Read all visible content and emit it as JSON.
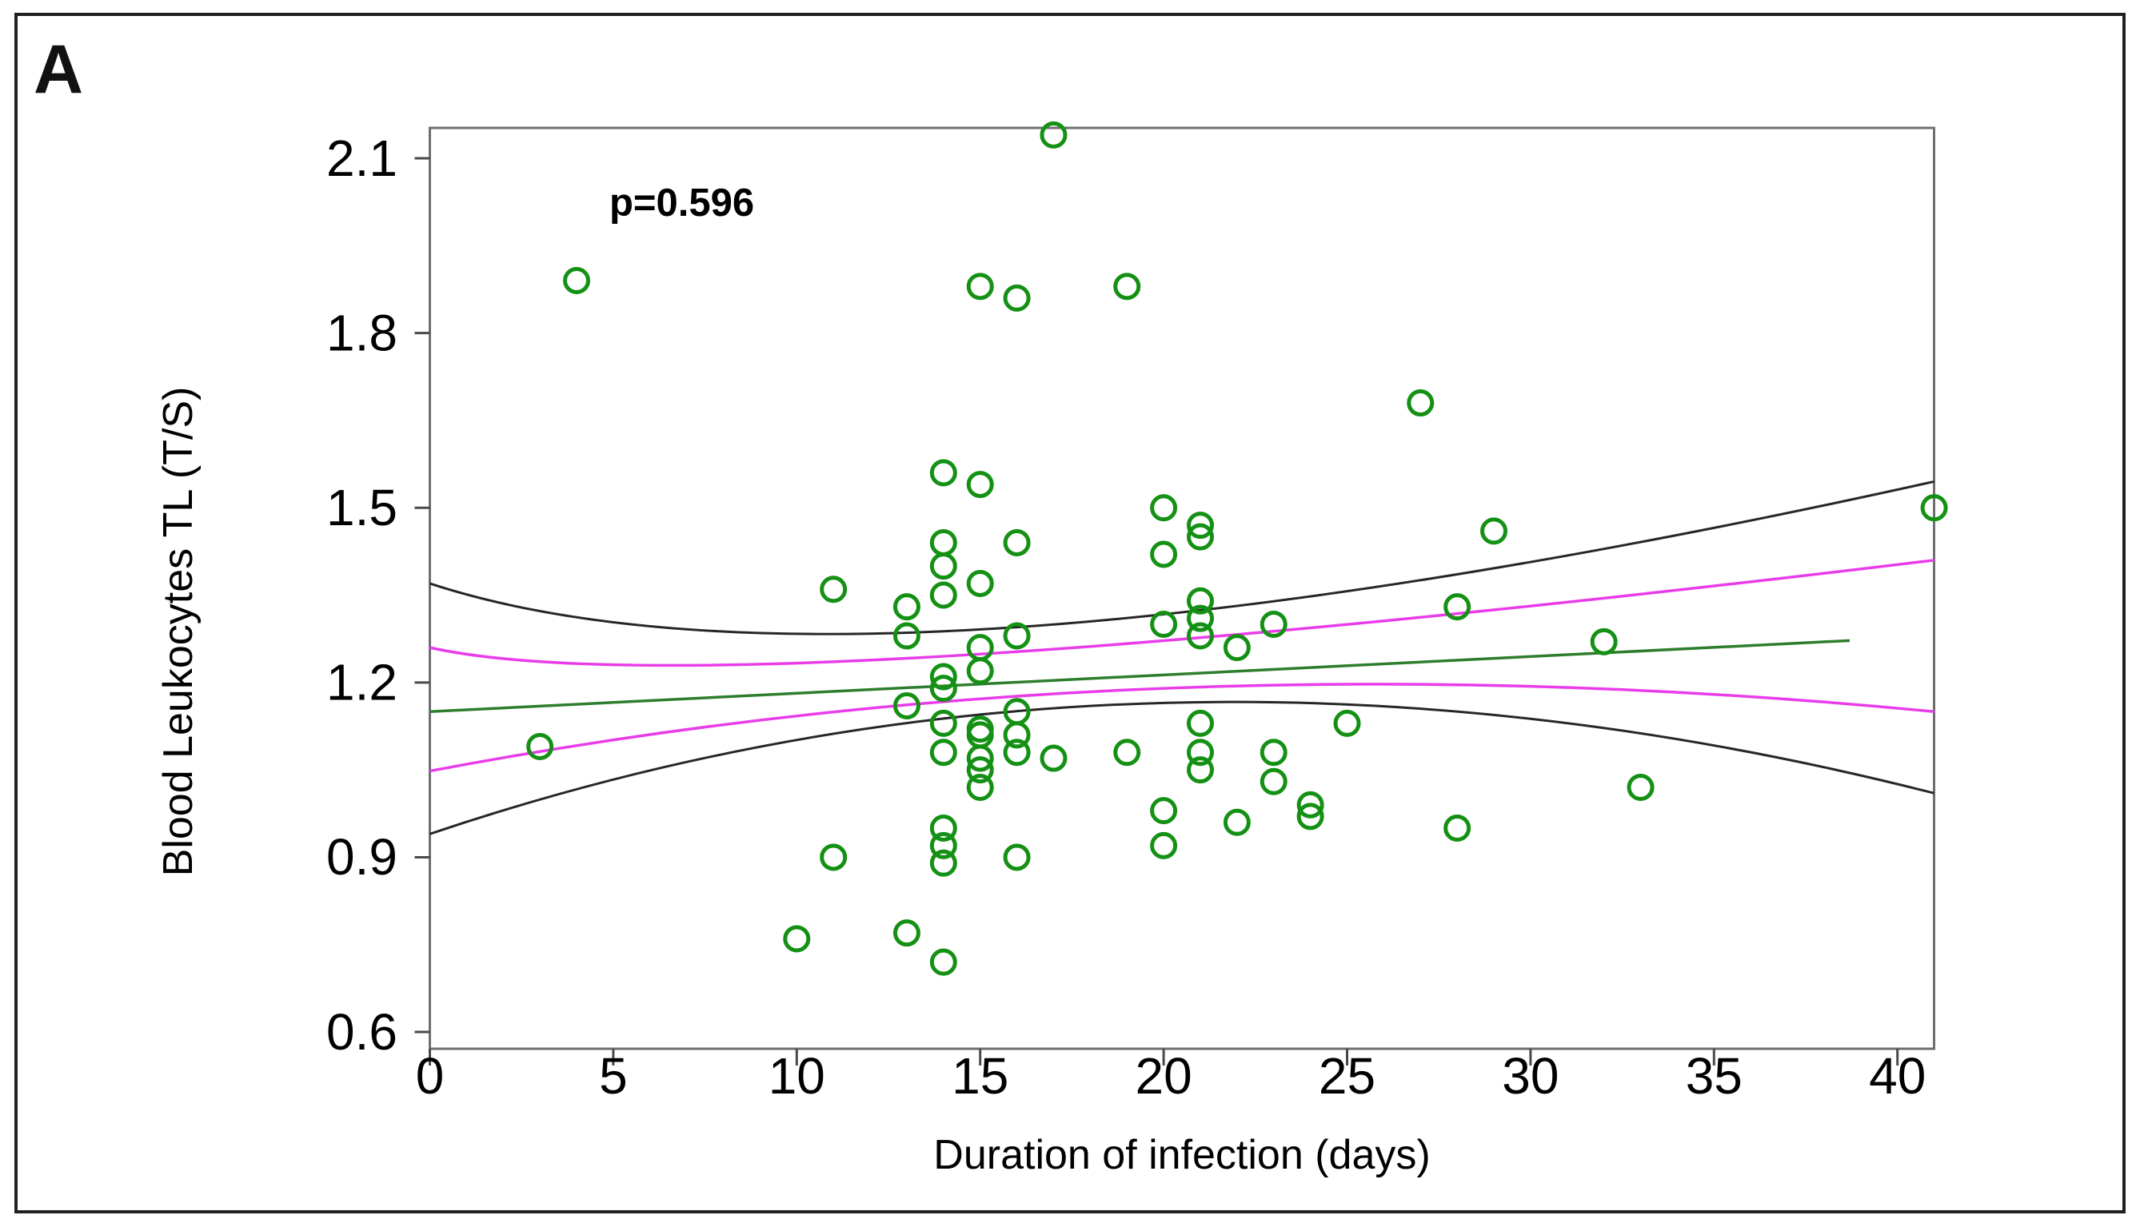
{
  "figure": {
    "panel_label": "A",
    "background": "#ffffff",
    "border_color": "#202020"
  },
  "annotation": {
    "p_value_label": "p=0.596"
  },
  "chart_data": {
    "type": "scatter",
    "title": "",
    "xlabel": "Duration of infection (days)",
    "ylabel": "Blood Leukocytes TL (T/S)",
    "xlim": [
      0,
      41
    ],
    "ylim": [
      0.57,
      2.15
    ],
    "grid": false,
    "legend": "none",
    "x_ticks": [
      0,
      5,
      10,
      15,
      20,
      25,
      30,
      35,
      40
    ],
    "x_tick_labels": [
      "0",
      "5",
      "10",
      "15",
      "20",
      "25",
      "30",
      "35",
      "40"
    ],
    "y_ticks": [
      0.6,
      0.9,
      1.2,
      1.5,
      1.8,
      2.1
    ],
    "y_tick_labels": [
      "0.6",
      "0.9",
      "1.2",
      "1.5",
      "1.8",
      "2.1"
    ],
    "points": [
      [
        3,
        1.09
      ],
      [
        4,
        1.89
      ],
      [
        10,
        0.76
      ],
      [
        11,
        1.36
      ],
      [
        11,
        0.9
      ],
      [
        13,
        1.33
      ],
      [
        13,
        1.28
      ],
      [
        13,
        1.16
      ],
      [
        13,
        0.77
      ],
      [
        14,
        1.56
      ],
      [
        14,
        1.44
      ],
      [
        14,
        1.4
      ],
      [
        14,
        1.35
      ],
      [
        14,
        1.21
      ],
      [
        14,
        1.19
      ],
      [
        14,
        1.13
      ],
      [
        14,
        1.08
      ],
      [
        14,
        0.95
      ],
      [
        14,
        0.92
      ],
      [
        14,
        0.89
      ],
      [
        14,
        0.72
      ],
      [
        15,
        1.88
      ],
      [
        15,
        1.54
      ],
      [
        15,
        1.37
      ],
      [
        15,
        1.26
      ],
      [
        15,
        1.22
      ],
      [
        15,
        1.12
      ],
      [
        15,
        1.11
      ],
      [
        15,
        1.07
      ],
      [
        15,
        1.05
      ],
      [
        15,
        1.02
      ],
      [
        16,
        1.86
      ],
      [
        16,
        1.44
      ],
      [
        16,
        1.28
      ],
      [
        16,
        1.15
      ],
      [
        16,
        1.11
      ],
      [
        16,
        1.08
      ],
      [
        16,
        0.9
      ],
      [
        17,
        2.14
      ],
      [
        17,
        1.07
      ],
      [
        19,
        1.88
      ],
      [
        19,
        1.08
      ],
      [
        20,
        1.5
      ],
      [
        20,
        1.42
      ],
      [
        20,
        1.3
      ],
      [
        20,
        0.98
      ],
      [
        20,
        0.92
      ],
      [
        21,
        1.47
      ],
      [
        21,
        1.45
      ],
      [
        21,
        1.34
      ],
      [
        21,
        1.31
      ],
      [
        21,
        1.28
      ],
      [
        21,
        1.13
      ],
      [
        21,
        1.08
      ],
      [
        21,
        1.05
      ],
      [
        22,
        1.26
      ],
      [
        22,
        0.96
      ],
      [
        23,
        1.3
      ],
      [
        23,
        1.08
      ],
      [
        23,
        1.03
      ],
      [
        24,
        0.99
      ],
      [
        24,
        0.97
      ],
      [
        25,
        1.13
      ],
      [
        27,
        1.68
      ],
      [
        28,
        1.33
      ],
      [
        28,
        0.95
      ],
      [
        29,
        1.46
      ],
      [
        32,
        1.27
      ],
      [
        33,
        1.02
      ],
      [
        41,
        1.5
      ]
    ],
    "regression_line": {
      "color": "#2e7d2e",
      "start": [
        0,
        1.15
      ],
      "end": [
        38.7,
        1.272
      ]
    },
    "confidence_band": {
      "color": "#e93ce9",
      "upper": {
        "start": [
          0,
          1.26
        ],
        "mid": [
          14,
          1.245
        ],
        "end": [
          41,
          1.41
        ]
      },
      "lower": {
        "start": [
          0,
          1.048
        ],
        "mid": [
          20,
          1.19
        ],
        "end": [
          41,
          1.15
        ]
      }
    },
    "outer_band": {
      "color": "#262626",
      "upper": {
        "start": [
          0,
          1.37
        ],
        "mid": [
          16,
          1.295
        ],
        "end": [
          41,
          1.545
        ]
      },
      "lower": {
        "start": [
          0,
          0.94
        ],
        "mid": [
          20,
          1.165
        ],
        "end": [
          41,
          1.01
        ]
      }
    },
    "colors": {
      "marker": "#149114",
      "frame": "#6f6f6f",
      "tick": "#4a4a4a",
      "text": "#000000"
    }
  }
}
